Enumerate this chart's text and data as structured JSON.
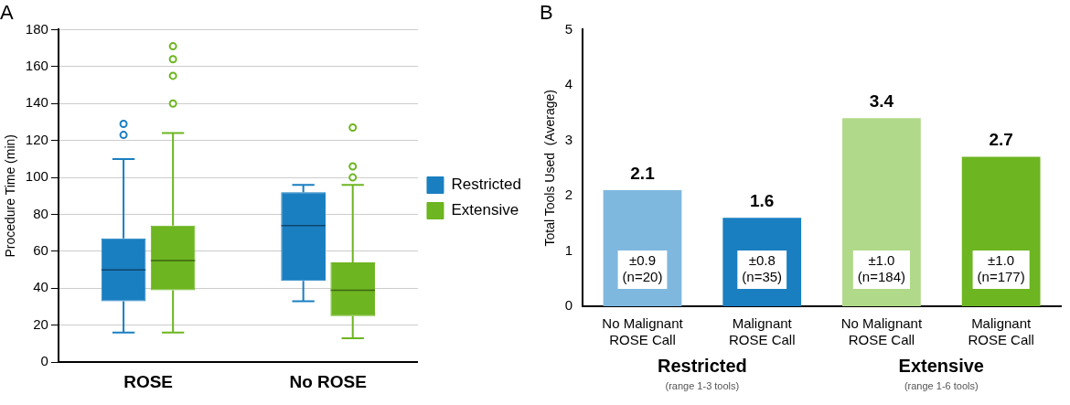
{
  "chart_data": [
    {
      "type": "box",
      "title": "A",
      "ylabel": "Procedure Time (min)",
      "categories": [
        "ROSE",
        "No ROSE"
      ],
      "series": [
        {
          "name": "Restricted",
          "color": "#1a7fc1",
          "boxes": [
            {
              "low": 16,
              "q1": 33,
              "median": 50,
              "q3": 67,
              "high": 110,
              "outliers": [
                123,
                129
              ]
            },
            {
              "low": 33,
              "q1": 44,
              "median": 74,
              "q3": 92,
              "high": 96
            }
          ]
        },
        {
          "name": "Extensive",
          "color": "#6db521",
          "boxes": [
            {
              "low": 16,
              "q1": 39,
              "median": 55,
              "q3": 74,
              "high": 124,
              "outliers": [
                140,
                155,
                164,
                171
              ]
            },
            {
              "low": 13,
              "q1": 25,
              "median": 39,
              "q3": 54,
              "high": 96,
              "outliers": [
                100,
                106,
                127
              ]
            }
          ]
        }
      ],
      "ylim": [
        0,
        180
      ],
      "yticks": [
        0,
        20,
        40,
        60,
        80,
        100,
        120,
        140,
        160,
        180
      ],
      "grid": "y",
      "legend": "right"
    },
    {
      "type": "bar",
      "title": "B",
      "ylabel": "Total Tools Used  (Average)",
      "categories": [
        "No Malignant ROSE Call",
        "Malignant ROSE Call",
        "No Malignant ROSE Call",
        "Malignant ROSE Call"
      ],
      "values": [
        2.1,
        1.6,
        3.4,
        2.7
      ],
      "colors": [
        "#7fb8df",
        "#1a7fc1",
        "#b0d98a",
        "#6db521"
      ],
      "data_labels": true,
      "ylim": [
        0,
        5
      ],
      "yticks": [
        0,
        1,
        2,
        3,
        4,
        5
      ],
      "grid": false,
      "annotations": [
        "±0.9 (n=20)",
        "±0.8 (n=35)",
        "±1.0 (n=184)",
        "±1.0 (n=177)",
        "Restricted",
        "(range 1-3 tools)",
        "Extensive",
        "(range 1-6 tools)"
      ]
    }
  ]
}
